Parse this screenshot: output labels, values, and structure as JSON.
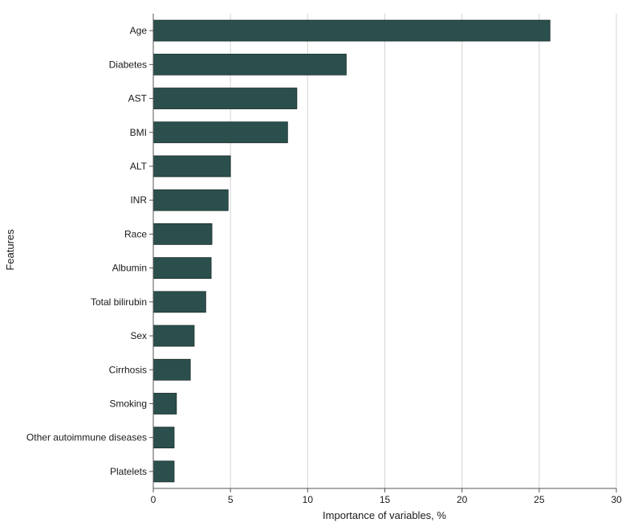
{
  "chart_data": {
    "type": "bar",
    "orientation": "horizontal",
    "title": "",
    "xlabel": "Importance of variables, %",
    "ylabel": "Features",
    "categories": [
      "Age",
      "Diabetes",
      "AST",
      "BMI",
      "ALT",
      "INR",
      "Race",
      "Albumin",
      "Total bilirubin",
      "Sex",
      "Cirrhosis",
      "Smoking",
      "Other autoimmune diseases",
      "Platelets"
    ],
    "values": [
      25.7,
      12.5,
      9.3,
      8.7,
      5.0,
      4.85,
      3.8,
      3.75,
      3.4,
      2.65,
      2.4,
      1.5,
      1.35,
      1.35
    ],
    "xlim": [
      0,
      30
    ],
    "xticks": [
      "0",
      "5",
      "10",
      "15",
      "20",
      "25",
      "30"
    ],
    "grid": "vertical",
    "bar_color": "#2b4f4c",
    "legend": "none"
  }
}
